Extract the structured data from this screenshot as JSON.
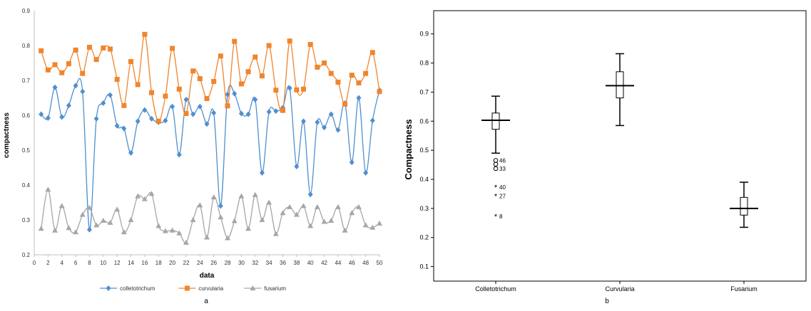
{
  "chart_data": [
    {
      "type": "line",
      "panel_label": "a",
      "title": "",
      "xlabel": "data",
      "ylabel": "compactness",
      "xlim": [
        0,
        50
      ],
      "ylim": [
        0.2,
        0.9
      ],
      "xticks": [
        "0",
        "2",
        "4",
        "6",
        "8",
        "10",
        "12",
        "14",
        "16",
        "18",
        "20",
        "22",
        "24",
        "26",
        "28",
        "30",
        "32",
        "34",
        "36",
        "38",
        "40",
        "42",
        "44",
        "46",
        "48",
        "50"
      ],
      "yticks": [
        "0.2",
        "0.3",
        "0.4",
        "0.5",
        "0.6",
        "0.7",
        "0.8",
        "0.9"
      ],
      "grid": false,
      "legend_position": "bottom",
      "x": [
        1,
        2,
        3,
        4,
        5,
        6,
        7,
        8,
        9,
        10,
        11,
        12,
        13,
        14,
        15,
        16,
        17,
        18,
        19,
        20,
        21,
        22,
        23,
        24,
        25,
        26,
        27,
        28,
        29,
        30,
        31,
        32,
        33,
        34,
        35,
        36,
        37,
        38,
        39,
        40,
        41,
        42,
        43,
        44,
        45,
        46,
        47,
        48,
        49,
        50
      ],
      "series": [
        {
          "name": "colletotrichum",
          "color": "#4f8fd0",
          "marker": "diamond",
          "values": [
            0.603,
            0.592,
            0.68,
            0.595,
            0.628,
            0.685,
            0.668,
            0.272,
            0.59,
            0.635,
            0.658,
            0.57,
            0.562,
            0.492,
            0.583,
            0.615,
            0.59,
            0.58,
            0.585,
            0.625,
            0.487,
            0.645,
            0.603,
            0.625,
            0.575,
            0.607,
            0.34,
            0.66,
            0.662,
            0.605,
            0.603,
            0.645,
            0.435,
            0.61,
            0.612,
            0.622,
            0.678,
            0.453,
            0.583,
            0.373,
            0.58,
            0.565,
            0.603,
            0.558,
            0.635,
            0.465,
            0.65,
            0.435,
            0.585,
            0.672
          ]
        },
        {
          "name": "curvularia",
          "color": "#f0852d",
          "marker": "square",
          "values": [
            0.785,
            0.73,
            0.745,
            0.722,
            0.748,
            0.787,
            0.72,
            0.795,
            0.76,
            0.793,
            0.79,
            0.703,
            0.628,
            0.754,
            0.688,
            0.832,
            0.665,
            0.583,
            0.655,
            0.792,
            0.675,
            0.605,
            0.727,
            0.705,
            0.648,
            0.697,
            0.77,
            0.627,
            0.812,
            0.69,
            0.725,
            0.767,
            0.713,
            0.8,
            0.672,
            0.614,
            0.813,
            0.673,
            0.675,
            0.803,
            0.738,
            0.75,
            0.72,
            0.695,
            0.632,
            0.715,
            0.693,
            0.72,
            0.78,
            0.668
          ]
        },
        {
          "name": "fusarium",
          "color": "#a6a6a6",
          "marker": "triangle",
          "values": [
            0.275,
            0.387,
            0.27,
            0.34,
            0.277,
            0.265,
            0.315,
            0.335,
            0.285,
            0.298,
            0.292,
            0.33,
            0.265,
            0.3,
            0.368,
            0.36,
            0.375,
            0.283,
            0.268,
            0.27,
            0.262,
            0.235,
            0.3,
            0.342,
            0.25,
            0.365,
            0.308,
            0.248,
            0.297,
            0.368,
            0.275,
            0.372,
            0.3,
            0.35,
            0.26,
            0.32,
            0.337,
            0.315,
            0.34,
            0.283,
            0.337,
            0.295,
            0.298,
            0.337,
            0.27,
            0.32,
            0.337,
            0.285,
            0.278,
            0.29
          ]
        }
      ]
    },
    {
      "type": "box",
      "panel_label": "b",
      "title": "",
      "xlabel": "",
      "ylabel": "Compactness",
      "ylim": [
        0.05,
        0.98
      ],
      "yticks": [
        "0.1",
        "0.2",
        "0.3",
        "0.4",
        "0.5",
        "0.6",
        "0.7",
        "0.8",
        "0.9"
      ],
      "grid": false,
      "categories": [
        "Colletotrichum",
        "Curvularia",
        "Fusarium"
      ],
      "boxes": [
        {
          "name": "Colletotrichum",
          "whisker_low": 0.49,
          "q1": 0.572,
          "median": 0.603,
          "q3": 0.628,
          "whisker_high": 0.686,
          "outliers": [
            {
              "label": "46",
              "value": 0.465,
              "symbol": "o"
            },
            {
              "label": "33",
              "value": 0.437,
              "symbol": "o"
            },
            {
              "label": "",
              "value": 0.452,
              "symbol": "o"
            },
            {
              "label": "40",
              "value": 0.373,
              "symbol": "*"
            },
            {
              "label": "27",
              "value": 0.342,
              "symbol": "*"
            },
            {
              "label": "8",
              "value": 0.273,
              "symbol": "*"
            }
          ]
        },
        {
          "name": "Curvularia",
          "whisker_low": 0.585,
          "q1": 0.68,
          "median": 0.722,
          "q3": 0.77,
          "whisker_high": 0.832,
          "outliers": []
        },
        {
          "name": "Fusarium",
          "whisker_low": 0.235,
          "q1": 0.277,
          "median": 0.3,
          "q3": 0.338,
          "whisker_high": 0.39,
          "outliers": []
        }
      ]
    }
  ]
}
